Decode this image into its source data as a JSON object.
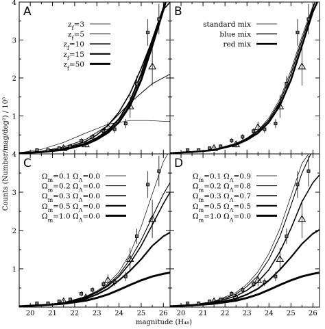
{
  "chart_data": {
    "type": "line",
    "ylabel": "Counts (Number/mag/deg²) / 10⁵",
    "xlabel": "magnitude (H₄₈)",
    "xlim": [
      19.5,
      26.3
    ],
    "ylim": [
      0,
      4
    ],
    "xticks": [
      20,
      21,
      22,
      23,
      24,
      25,
      26
    ],
    "yticks": [
      1,
      2,
      3,
      4
    ],
    "observed_squares": [
      {
        "x": 20.3,
        "y": 0.1,
        "err": 0.03
      },
      {
        "x": 20.8,
        "y": 0.1,
        "err": 0.03
      },
      {
        "x": 21.3,
        "y": 0.15,
        "err": 0.04
      },
      {
        "x": 21.8,
        "y": 0.2,
        "err": 0.05
      },
      {
        "x": 22.3,
        "y": 0.35,
        "err": 0.06
      },
      {
        "x": 22.8,
        "y": 0.45,
        "err": 0.07
      },
      {
        "x": 23.3,
        "y": 0.6,
        "err": 0.08
      },
      {
        "x": 23.8,
        "y": 0.65,
        "err": 0.1
      },
      {
        "x": 24.3,
        "y": 0.8,
        "err": 0.12
      },
      {
        "x": 24.8,
        "y": 1.85,
        "err": 0.2
      },
      {
        "x": 25.3,
        "y": 3.2,
        "err": 0.35
      },
      {
        "x": 25.8,
        "y": 3.55,
        "err": 0.4
      }
    ],
    "observed_triangles": [
      {
        "x": 21.5,
        "y": 0.15,
        "err": 0.05
      },
      {
        "x": 22.5,
        "y": 0.25,
        "err": 0.08
      },
      {
        "x": 23.5,
        "y": 0.7,
        "err": 0.15
      },
      {
        "x": 24.5,
        "y": 1.25,
        "err": 0.3
      },
      {
        "x": 25.5,
        "y": 2.3,
        "err": 0.5
      }
    ],
    "panels": [
      {
        "letter": "A",
        "legend": [
          "z_f=3",
          "z_f=5",
          "z_f=10",
          "z_f=15",
          "z_f=50"
        ],
        "series": [
          {
            "width": 0.7,
            "x": [
              19.5,
              20.5,
              21.5,
              22.5,
              23.5,
              24.5,
              25.3,
              26.3
            ],
            "y": [
              0.03,
              0.12,
              0.3,
              0.55,
              0.78,
              0.88,
              0.88,
              0.85
            ]
          },
          {
            "width": 1.0,
            "x": [
              19.5,
              20.5,
              21.5,
              22.5,
              23.5,
              24.5,
              25.5,
              26.3
            ],
            "y": [
              0.02,
              0.07,
              0.18,
              0.38,
              0.75,
              1.35,
              1.85,
              2.1
            ]
          },
          {
            "width": 1.6,
            "x": [
              19.5,
              20.5,
              21.5,
              22.5,
              23.0,
              23.5,
              24.0,
              24.5,
              25.0,
              25.5,
              26.0,
              26.3
            ],
            "y": [
              0.02,
              0.06,
              0.14,
              0.33,
              0.5,
              0.75,
              1.1,
              1.6,
              2.25,
              3.0,
              3.8,
              4.0
            ]
          },
          {
            "width": 2.2,
            "x": [
              19.5,
              20.5,
              21.5,
              22.5,
              23.0,
              23.5,
              24.0,
              24.5,
              25.0,
              25.5,
              26.0,
              26.1
            ],
            "y": [
              0.02,
              0.05,
              0.12,
              0.28,
              0.42,
              0.62,
              0.92,
              1.4,
              2.1,
              3.0,
              3.85,
              4.0
            ]
          },
          {
            "width": 3.0,
            "x": [
              19.5,
              20.5,
              21.5,
              22.5,
              23.0,
              23.5,
              24.0,
              24.5,
              25.0,
              25.5,
              26.0,
              26.1
            ],
            "y": [
              0.02,
              0.05,
              0.11,
              0.25,
              0.38,
              0.56,
              0.84,
              1.28,
              1.95,
              2.85,
              3.8,
              4.0
            ]
          }
        ]
      },
      {
        "letter": "B",
        "legend": [
          "standard mix",
          "blue mix",
          "red mix"
        ],
        "series": [
          {
            "width": 0.7,
            "x": [
              19.5,
              20.5,
              21.5,
              22.5,
              23.0,
              23.5,
              24.0,
              24.5,
              25.0,
              25.5,
              26.0,
              26.1
            ],
            "y": [
              0.02,
              0.05,
              0.12,
              0.28,
              0.42,
              0.62,
              0.95,
              1.45,
              2.2,
              3.1,
              3.9,
              4.0
            ]
          },
          {
            "width": 1.4,
            "x": [
              19.5,
              20.5,
              21.5,
              22.5,
              23.0,
              23.5,
              24.0,
              24.5,
              25.0,
              25.5,
              26.0,
              26.1
            ],
            "y": [
              0.02,
              0.05,
              0.11,
              0.26,
              0.4,
              0.6,
              0.9,
              1.38,
              2.1,
              3.0,
              3.85,
              4.0
            ]
          },
          {
            "width": 2.6,
            "x": [
              19.5,
              20.5,
              21.5,
              22.5,
              23.0,
              23.5,
              24.0,
              24.5,
              25.0,
              25.5,
              26.0,
              26.2
            ],
            "y": [
              0.02,
              0.05,
              0.1,
              0.24,
              0.37,
              0.55,
              0.84,
              1.28,
              1.95,
              2.85,
              3.75,
              4.0
            ]
          }
        ]
      },
      {
        "letter": "C",
        "legend": [
          "Ω_m=0.1 Ω_Λ=0.0",
          "Ω_m=0.2 Ω_Λ=0.0",
          "Ω_m=0.3 Ω_Λ=0.0",
          "Ω_m=0.5 Ω_Λ=0.0",
          "Ω_m=1.0 Ω_Λ=0.0"
        ],
        "series": [
          {
            "width": 0.7,
            "x": [
              19.5,
              20.5,
              21.5,
              22.5,
              23.0,
              23.5,
              24.0,
              24.5,
              25.0,
              25.5,
              26.0,
              26.2
            ],
            "y": [
              0.02,
              0.05,
              0.12,
              0.28,
              0.42,
              0.62,
              0.92,
              1.4,
              2.1,
              2.95,
              3.8,
              4.0
            ]
          },
          {
            "width": 1.1,
            "x": [
              19.5,
              20.5,
              21.5,
              22.5,
              23.0,
              23.5,
              24.0,
              24.5,
              25.0,
              25.5,
              26.0,
              26.3
            ],
            "y": [
              0.02,
              0.05,
              0.12,
              0.27,
              0.4,
              0.58,
              0.85,
              1.25,
              1.75,
              2.35,
              2.95,
              3.25
            ]
          },
          {
            "width": 1.6,
            "x": [
              19.5,
              20.5,
              21.5,
              22.5,
              23.0,
              23.5,
              24.0,
              24.5,
              25.0,
              25.5,
              26.0,
              26.3
            ],
            "y": [
              0.02,
              0.05,
              0.11,
              0.25,
              0.38,
              0.55,
              0.8,
              1.15,
              1.6,
              2.15,
              2.7,
              3.0
            ]
          },
          {
            "width": 2.2,
            "x": [
              19.5,
              20.5,
              21.5,
              22.5,
              23.0,
              23.5,
              24.0,
              24.5,
              25.0,
              25.5,
              26.0,
              26.3
            ],
            "y": [
              0.02,
              0.05,
              0.1,
              0.22,
              0.33,
              0.48,
              0.7,
              0.95,
              1.25,
              1.6,
              1.85,
              1.95
            ]
          },
          {
            "width": 3.0,
            "x": [
              19.5,
              20.5,
              21.5,
              22.5,
              23.0,
              23.5,
              24.0,
              24.5,
              25.0,
              25.5,
              26.0,
              26.3
            ],
            "y": [
              0.02,
              0.05,
              0.09,
              0.17,
              0.24,
              0.33,
              0.45,
              0.58,
              0.7,
              0.8,
              0.87,
              0.9
            ]
          }
        ]
      },
      {
        "letter": "D",
        "legend": [
          "Ω_m=0.1 Ω_Λ=0.9",
          "Ω_m=0.2 Ω_Λ=0.8",
          "Ω_m=0.3 Ω_Λ=0.7",
          "Ω_m=0.5 Ω_Λ=0.5",
          "Ω_m=1.0 Ω_Λ=0.0"
        ],
        "series": [
          {
            "width": 0.7,
            "x": [
              19.5,
              20.5,
              21.5,
              22.5,
              23.0,
              23.5,
              24.0,
              24.5,
              25.0,
              25.5,
              25.8
            ],
            "y": [
              0.02,
              0.06,
              0.15,
              0.38,
              0.6,
              0.92,
              1.4,
              2.05,
              2.9,
              3.75,
              4.0
            ]
          },
          {
            "width": 1.1,
            "x": [
              19.5,
              20.5,
              21.5,
              22.5,
              23.0,
              23.5,
              24.0,
              24.5,
              25.0,
              25.5,
              25.9
            ],
            "y": [
              0.02,
              0.06,
              0.14,
              0.34,
              0.54,
              0.82,
              1.25,
              1.85,
              2.65,
              3.5,
              4.0
            ]
          },
          {
            "width": 1.6,
            "x": [
              19.5,
              20.5,
              21.5,
              22.5,
              23.0,
              23.5,
              24.0,
              24.5,
              25.0,
              25.5,
              26.0,
              26.3
            ],
            "y": [
              0.02,
              0.05,
              0.12,
              0.29,
              0.44,
              0.66,
              0.98,
              1.45,
              2.05,
              2.75,
              3.25,
              3.45
            ]
          },
          {
            "width": 2.2,
            "x": [
              19.5,
              20.5,
              21.5,
              22.5,
              23.0,
              23.5,
              24.0,
              24.5,
              25.0,
              25.5,
              26.0,
              26.3
            ],
            "y": [
              0.02,
              0.05,
              0.1,
              0.22,
              0.33,
              0.48,
              0.7,
              0.98,
              1.3,
              1.65,
              1.92,
              2.02
            ]
          },
          {
            "width": 3.0,
            "x": [
              19.5,
              20.5,
              21.5,
              22.5,
              23.0,
              23.5,
              24.0,
              24.5,
              25.0,
              25.5,
              26.0,
              26.3
            ],
            "y": [
              0.02,
              0.05,
              0.09,
              0.17,
              0.24,
              0.33,
              0.45,
              0.58,
              0.7,
              0.8,
              0.87,
              0.9
            ]
          }
        ]
      }
    ]
  }
}
